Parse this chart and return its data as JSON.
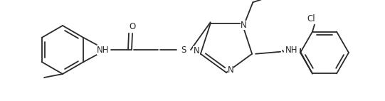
{
  "bg_color": "#ffffff",
  "line_color": "#2a2a2a",
  "line_width": 1.3,
  "font_size": 8.5,
  "figsize": [
    5.41,
    1.42
  ],
  "dpi": 100,
  "xlim": [
    0,
    541
  ],
  "ylim": [
    0,
    142
  ]
}
